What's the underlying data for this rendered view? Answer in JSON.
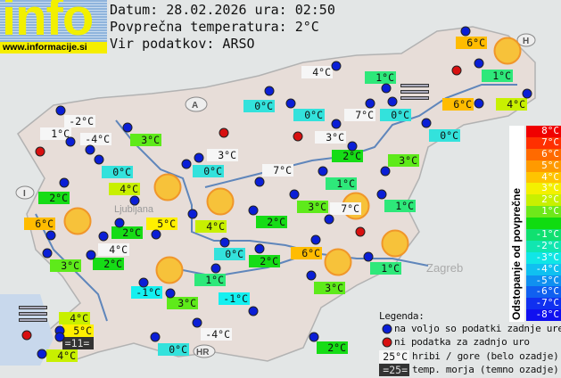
{
  "logo": {
    "text": "info",
    "url": "www.informacije.si"
  },
  "header": {
    "date_line": "Datum: 28.02.2026 ura: 02:50",
    "avg_line": "Povprečna temperatura: 2°C",
    "source_line": "Vir podatkov: ARSO"
  },
  "map_labels": {
    "austria": "A",
    "italy": "I",
    "hungary": "H",
    "croatia": "HR",
    "ljubljana": "Ljubljana",
    "zagreb": "Zagreb"
  },
  "stations": [
    "-2°C",
    "1°C",
    "-4°C",
    "3°C",
    "0°C",
    "0°C",
    "4°C",
    "2°C",
    "0°C",
    "3°C",
    "4°C",
    "1°C",
    "6°C",
    "1°C",
    "6°C",
    "4°C",
    "0°C",
    "7°C",
    "0°C",
    "3°C",
    "0°C",
    "2°C",
    "3°C",
    "7°C",
    "1°C",
    "3°C",
    "7°C",
    "1°C",
    "6°C",
    "5°C",
    "2°C",
    "4°C",
    "2°C",
    "4°C",
    "0°C",
    "2°C",
    "6°C",
    "2°C",
    "3°C",
    "1°C",
    "1°C",
    "3°C",
    "-1°C",
    "3°C",
    "-1°C",
    "4°C",
    "5°C",
    "=11=",
    "4°C",
    "-4°C",
    "0°C",
    "2°C"
  ],
  "scale": {
    "title": "Odstopanje od povprečne temperature:",
    "steps": [
      "8°C",
      "7°C",
      "6°C",
      "5°C",
      "4°C",
      "3°C",
      "2°C",
      "1°C",
      "",
      "-1°C",
      "-2°C",
      "-3°C",
      "-4°C",
      "-5°C",
      "-6°C",
      "-7°C",
      "-8°C"
    ],
    "colors": [
      "#f00000",
      "#ff3000",
      "#ff6a00",
      "#ff9a00",
      "#ffc400",
      "#f4f000",
      "#c8f000",
      "#6ee81a",
      "#10dc10",
      "#10e070",
      "#10e6b0",
      "#10e6e6",
      "#10c0f0",
      "#1090f0",
      "#1060f0",
      "#1030f0",
      "#1010f0"
    ]
  },
  "legend": {
    "title": "Legenda:",
    "blue": "na voljo so podatki zadnje ure",
    "red": "ni podatka za zadnjo uro",
    "hill_sample": "25°C",
    "hill_text": "hribi / gore (belo ozadje)",
    "sea_sample": "=25=",
    "sea_text": "temp. morja (temno ozadje)"
  }
}
